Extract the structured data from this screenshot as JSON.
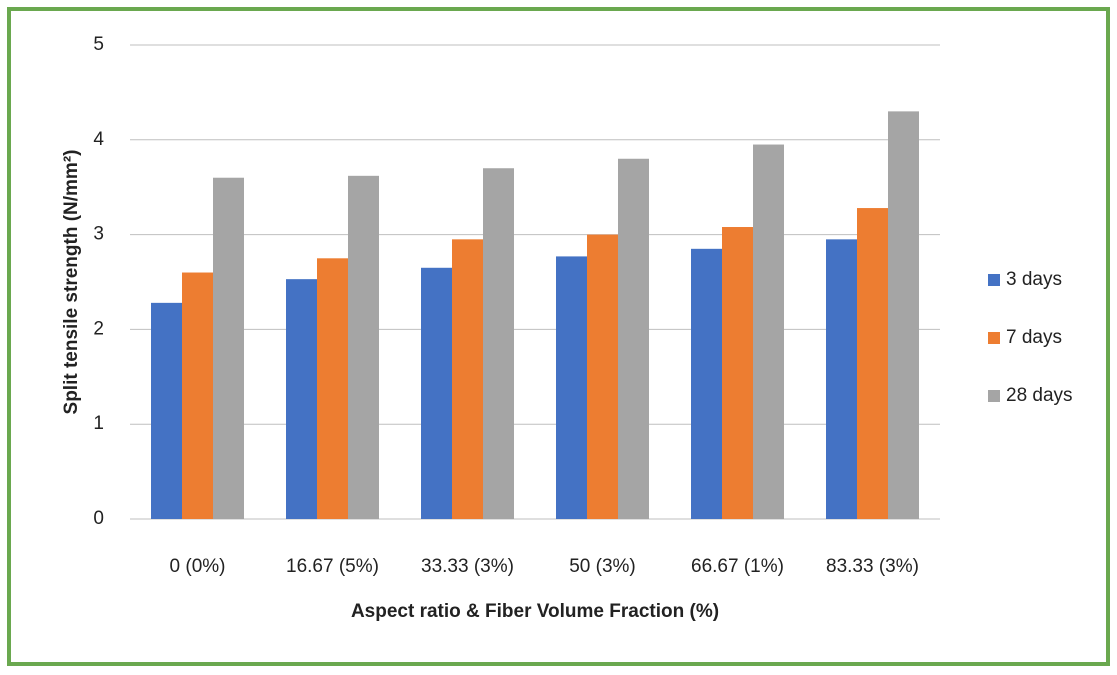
{
  "chart_data": {
    "type": "bar",
    "x_label": "Aspect ratio & Fiber Volume Fraction (%)",
    "y_label": "Split tensile strength (N/mm²)",
    "categories": [
      "0 (0%)",
      "16.67 (5%)",
      "33.33 (3%)",
      "50 (3%)",
      "66.67 (1%)",
      "83.33 (3%)"
    ],
    "series": [
      {
        "name": "3 days",
        "color": "#4472c4",
        "values": [
          2.28,
          2.53,
          2.65,
          2.77,
          2.85,
          2.95
        ]
      },
      {
        "name": "7 days",
        "color": "#ed7d31",
        "values": [
          2.6,
          2.75,
          2.95,
          3.0,
          3.08,
          3.28
        ]
      },
      {
        "name": "28 days",
        "color": "#a5a5a5",
        "values": [
          3.6,
          3.62,
          3.7,
          3.8,
          3.95,
          4.3
        ]
      }
    ],
    "ylim": [
      0,
      5
    ],
    "yticks": [
      0,
      1,
      2,
      3,
      4,
      5
    ],
    "grid": true,
    "legend": "right"
  }
}
